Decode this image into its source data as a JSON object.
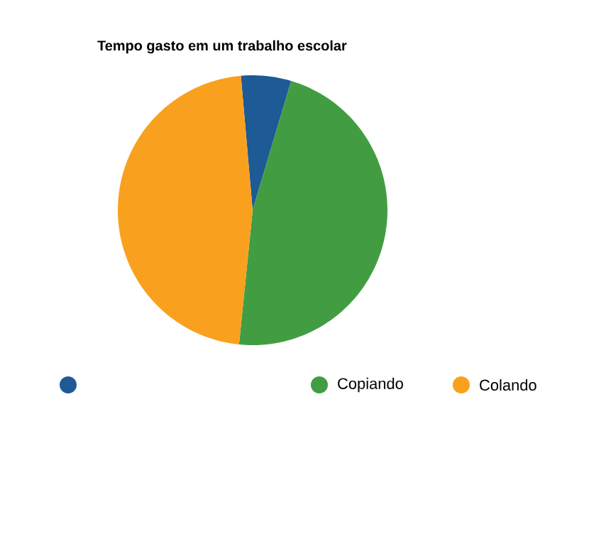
{
  "chart_data": {
    "type": "pie",
    "title": "Tempo gasto em um trabalho escolar",
    "categories": [
      null,
      "Copiando",
      "Colando"
    ],
    "values": [
      6,
      47,
      47
    ],
    "colors": [
      "#1d5a96",
      "#429d42",
      "#f9a11f"
    ],
    "legend": "bottom"
  }
}
